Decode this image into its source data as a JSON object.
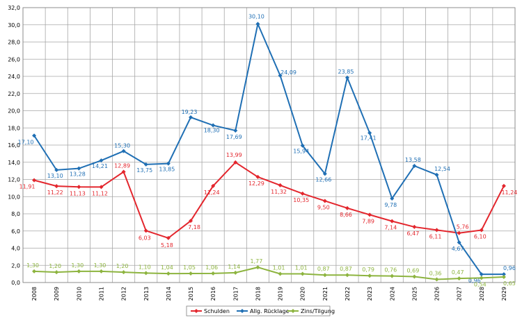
{
  "chart_data": {
    "type": "line",
    "categories": [
      "2008",
      "2009",
      "2010",
      "2011",
      "2012",
      "2013",
      "2014",
      "2015",
      "2016",
      "2017",
      "2018",
      "2019",
      "2020",
      "2021",
      "2022",
      "2023",
      "2024",
      "2025",
      "2026",
      "2027",
      "2028",
      "2029"
    ],
    "ylim": [
      0,
      32
    ],
    "ytick_step": 2,
    "ytick_labels": [
      "0,0",
      "2,0",
      "4,0",
      "6,0",
      "8,0",
      "10,0",
      "12,0",
      "14,0",
      "16,0",
      "18,0",
      "20,0",
      "22,0",
      "24,0",
      "26,0",
      "28,0",
      "30,0",
      "32,0"
    ],
    "grid": true,
    "legend_position": "bottom",
    "series": [
      {
        "name": "Schulden",
        "color": "#e3262d",
        "values": [
          11.91,
          11.22,
          11.13,
          11.12,
          12.89,
          6.03,
          5.18,
          7.18,
          11.24,
          13.99,
          12.29,
          11.32,
          10.35,
          9.5,
          8.66,
          7.89,
          7.14,
          6.47,
          6.11,
          5.76,
          6.1,
          11.24
        ],
        "labels": [
          "11,91",
          "11,22",
          "11,13",
          "11,12",
          "12,89",
          "6,03",
          "5,18",
          "7,18",
          "11,24",
          "13,99",
          "12,29",
          "11,32",
          "10,35",
          "9,50",
          "8,66",
          "7,89",
          "7,14",
          "6,47",
          "6,11",
          "5,76",
          "6,10",
          "11,24"
        ]
      },
      {
        "name": "Allg. Rücklage",
        "color": "#1f6fb4",
        "values": [
          17.1,
          13.1,
          13.28,
          14.21,
          15.3,
          13.75,
          13.85,
          19.23,
          18.3,
          17.69,
          30.1,
          24.09,
          15.94,
          12.66,
          23.85,
          17.41,
          9.78,
          13.58,
          12.54,
          4.67,
          0.96,
          0.96
        ],
        "labels": [
          "17,10",
          "13,10",
          "13,28",
          "14,21",
          "15,30",
          "13,75",
          "13,85",
          "19,23",
          "18,30",
          "17,69",
          "30,10",
          "24,09",
          "15,94",
          "12,66",
          "23,85",
          "17,41",
          "9,78",
          "13,58",
          "12,54",
          "4,67",
          "0,96",
          "0,96"
        ]
      },
      {
        "name": "Zins/Tilgung",
        "color": "#8db43f",
        "values": [
          1.3,
          1.2,
          1.3,
          1.3,
          1.2,
          1.1,
          1.04,
          1.05,
          1.06,
          1.14,
          1.77,
          1.01,
          1.01,
          0.87,
          0.87,
          0.79,
          0.76,
          0.69,
          0.36,
          0.47,
          0.54,
          0.65
        ],
        "labels": [
          "1,30",
          "1,20",
          "1,30",
          "1,30",
          "1,20",
          "1,10",
          "1,04",
          "1,05",
          "1,06",
          "1,14",
          "1,77",
          "1,01",
          "1,01",
          "0,87",
          "0,87",
          "0,79",
          "0,76",
          "0,69",
          "0,36",
          "0,47",
          "0,54",
          "0,65"
        ]
      }
    ]
  }
}
